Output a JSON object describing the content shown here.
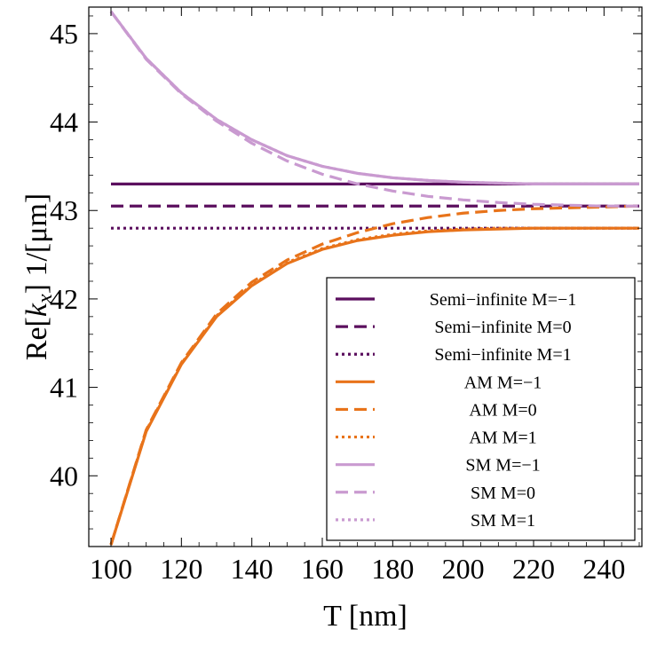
{
  "chart_data": {
    "type": "line",
    "title": "",
    "xlabel": "T [nm]",
    "ylabel_parts": {
      "pre": "Re[",
      "var": "k",
      "sub": "x",
      "post": "] 1/[μm]"
    },
    "xlim": [
      100,
      250
    ],
    "ylim": [
      39.2,
      45.3
    ],
    "xticks": [
      100,
      120,
      140,
      160,
      180,
      200,
      220,
      240
    ],
    "yticks": [
      40,
      41,
      42,
      43,
      44,
      45
    ],
    "legend_position": "lower-right",
    "grid": false,
    "colors": {
      "dark_purple": "#5b0f5e",
      "orange": "#e8731a",
      "light_purple": "#c99ad0"
    },
    "series": [
      {
        "name": "Semi−infinite M=−1",
        "color": "#5b0f5e",
        "dash": "solid",
        "x": [
          100,
          250
        ],
        "y": [
          43.3,
          43.3
        ]
      },
      {
        "name": "Semi−infinite M=0",
        "color": "#5b0f5e",
        "dash": "dashed",
        "x": [
          100,
          250
        ],
        "y": [
          43.05,
          43.05
        ]
      },
      {
        "name": "Semi−infinite M=1",
        "color": "#5b0f5e",
        "dash": "dotted",
        "x": [
          100,
          250
        ],
        "y": [
          42.8,
          42.8
        ]
      },
      {
        "name": "AM M=−1",
        "color": "#e8731a",
        "dash": "solid",
        "x": [
          100,
          110,
          120,
          130,
          140,
          150,
          160,
          170,
          180,
          190,
          200,
          210,
          220,
          230,
          240,
          250
        ],
        "y": [
          39.22,
          40.5,
          41.26,
          41.8,
          42.15,
          42.4,
          42.56,
          42.66,
          42.72,
          42.76,
          42.78,
          42.79,
          42.8,
          42.8,
          42.8,
          42.8
        ]
      },
      {
        "name": "AM  M=0",
        "color": "#e8731a",
        "dash": "dashed",
        "x": [
          100,
          110,
          120,
          130,
          140,
          150,
          160,
          170,
          180,
          190,
          200,
          210,
          220,
          230,
          240,
          250
        ],
        "y": [
          39.22,
          40.52,
          41.28,
          41.83,
          42.19,
          42.44,
          42.62,
          42.75,
          42.85,
          42.92,
          42.97,
          43.0,
          43.02,
          43.03,
          43.04,
          43.05
        ]
      },
      {
        "name": "AM M=1",
        "color": "#e8731a",
        "dash": "dotted",
        "x": [
          100,
          110,
          120,
          130,
          140,
          150,
          160,
          170,
          180,
          190,
          200,
          210,
          220,
          230,
          240,
          250
        ],
        "y": [
          39.22,
          40.51,
          41.27,
          41.81,
          42.16,
          42.41,
          42.57,
          42.67,
          42.73,
          42.77,
          42.79,
          42.8,
          42.8,
          42.8,
          42.8,
          42.8
        ]
      },
      {
        "name": "SM M=−1",
        "color": "#c99ad0",
        "dash": "solid",
        "x": [
          100,
          110,
          120,
          130,
          140,
          150,
          160,
          170,
          180,
          190,
          200,
          210,
          220,
          230,
          240,
          250
        ],
        "y": [
          45.25,
          44.72,
          44.33,
          44.03,
          43.8,
          43.62,
          43.5,
          43.42,
          43.37,
          43.34,
          43.32,
          43.31,
          43.3,
          43.3,
          43.3,
          43.3
        ]
      },
      {
        "name": "SM M=0",
        "color": "#c99ad0",
        "dash": "dashed",
        "x": [
          100,
          110,
          120,
          130,
          140,
          150,
          160,
          170,
          180,
          190,
          200,
          210,
          220,
          230,
          240,
          250
        ],
        "y": [
          45.25,
          44.71,
          44.32,
          44.01,
          43.76,
          43.56,
          43.41,
          43.3,
          43.22,
          43.16,
          43.12,
          43.09,
          43.07,
          43.06,
          43.05,
          43.05
        ]
      },
      {
        "name": "SM  M=1",
        "color": "#c99ad0",
        "dash": "dotted",
        "x": [
          100,
          110,
          120,
          130,
          140,
          150,
          160,
          170,
          180,
          190,
          200,
          210,
          220,
          230,
          240,
          250
        ],
        "y": [
          45.25,
          44.72,
          44.33,
          44.03,
          43.8,
          43.62,
          43.5,
          43.42,
          43.37,
          43.34,
          43.32,
          43.31,
          43.3,
          43.3,
          43.3,
          43.3
        ]
      }
    ]
  }
}
